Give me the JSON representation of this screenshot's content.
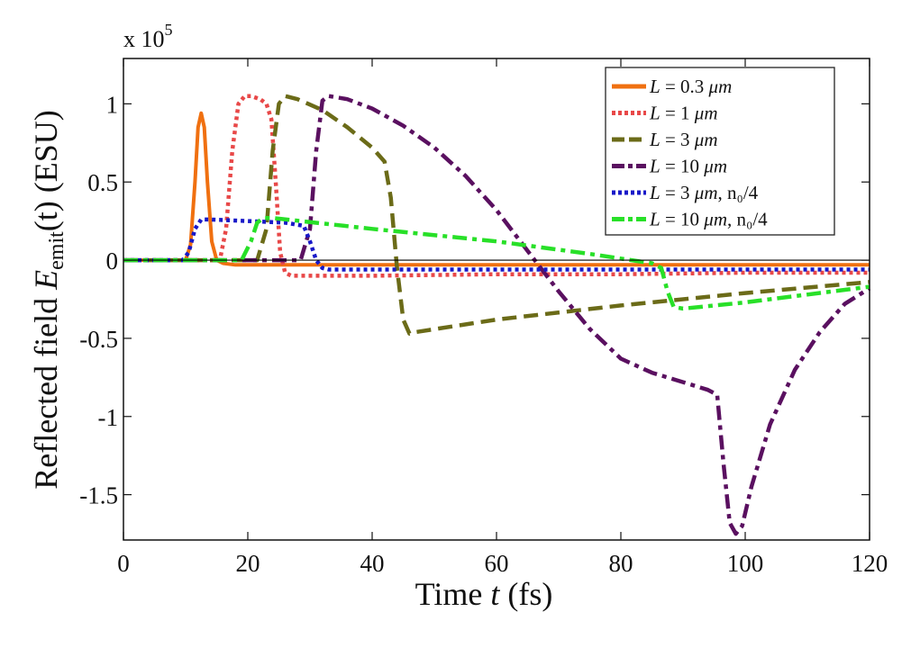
{
  "chart_data": {
    "type": "line",
    "title": "",
    "xlabel": "Time t (fs)",
    "xlabel_parts": {
      "main": "Time ",
      "var": "t",
      "unit": " (fs)"
    },
    "ylabel": "Reflected field E_emit(t) (ESU)",
    "ylabel_parts": {
      "main": "Reflected field ",
      "var": "E",
      "sub": "emit",
      "arg": "(t)",
      "unit": " (ESU)"
    },
    "y_multiplier": "x 10^5",
    "y_multiplier_parts": {
      "base": "x 10",
      "exp": "5"
    },
    "xlim": [
      0,
      120
    ],
    "ylim": [
      -1.79,
      1.29
    ],
    "x_ticks": [
      0,
      20,
      40,
      60,
      80,
      100,
      120
    ],
    "x_tick_labels": [
      "0",
      "20",
      "40",
      "60",
      "80",
      "100",
      "120"
    ],
    "y_ticks": [
      1,
      0.5,
      0,
      -0.5,
      -1,
      -1.5
    ],
    "y_tick_labels": [
      "1",
      "0.5",
      "0",
      "-0.5",
      "-1",
      "-1.5"
    ],
    "grid": false,
    "legend_position": "top-right",
    "zero_line": {
      "y": 0,
      "color": "#000000"
    },
    "series": [
      {
        "name": "L = 0.3 μm",
        "legend": {
          "pre": "L",
          "mid": " = 0.3 ",
          "unit": "μm",
          "suffix": ""
        },
        "color": "#f07010",
        "style": "solid",
        "x": [
          0,
          10,
          10.8,
          11.5,
          12,
          12.5,
          13,
          13.5,
          14.2,
          15,
          16,
          18,
          30,
          60,
          90,
          120
        ],
        "y": [
          0,
          0,
          0.1,
          0.5,
          0.85,
          0.94,
          0.85,
          0.5,
          0.12,
          0.0,
          -0.02,
          -0.03,
          -0.03,
          -0.03,
          -0.03,
          -0.03
        ]
      },
      {
        "name": "L = 1 μm",
        "legend": {
          "pre": "L",
          "mid": " = 1 ",
          "unit": "μm",
          "suffix": ""
        },
        "color": "#e84848",
        "style": "dotted",
        "x": [
          0,
          15.5,
          16.5,
          17.5,
          18.5,
          19.5,
          20.5,
          22,
          23,
          23.8,
          24.5,
          25.2,
          26,
          27,
          40,
          60,
          80,
          100,
          120
        ],
        "y": [
          0,
          0,
          0.2,
          0.7,
          1.0,
          1.05,
          1.05,
          1.03,
          1.0,
          0.9,
          0.5,
          0.05,
          -0.08,
          -0.1,
          -0.1,
          -0.09,
          -0.09,
          -0.08,
          -0.08
        ]
      },
      {
        "name": "L = 3 μm",
        "legend": {
          "pre": "L",
          "mid": " = 3 ",
          "unit": "μm",
          "suffix": ""
        },
        "color": "#6b6b18",
        "style": "dashed",
        "x": [
          0,
          21.5,
          23,
          24,
          25,
          26,
          28,
          32,
          36,
          40,
          42,
          43,
          44,
          45,
          46,
          47,
          60,
          80,
          100,
          120
        ],
        "y": [
          0,
          0,
          0.2,
          0.7,
          1.0,
          1.05,
          1.03,
          0.96,
          0.85,
          0.72,
          0.63,
          0.4,
          -0.05,
          -0.38,
          -0.47,
          -0.46,
          -0.38,
          -0.29,
          -0.21,
          -0.14
        ]
      },
      {
        "name": "L = 10 μm",
        "legend": {
          "pre": "L",
          "mid": " = 10 ",
          "unit": "μm",
          "suffix": ""
        },
        "color": "#5a1060",
        "style": "dashdot",
        "x": [
          0,
          28.5,
          30,
          31,
          32,
          33,
          36,
          40,
          45,
          50,
          55,
          60,
          65,
          70,
          75,
          80,
          85,
          90,
          94,
          95.5,
          96.5,
          97.5,
          98.5,
          99.5,
          101,
          104,
          108,
          112,
          116,
          120
        ],
        "y": [
          0,
          0,
          0.2,
          0.7,
          1.02,
          1.05,
          1.03,
          0.97,
          0.86,
          0.72,
          0.54,
          0.32,
          0.06,
          -0.2,
          -0.44,
          -0.63,
          -0.72,
          -0.78,
          -0.83,
          -0.86,
          -1.3,
          -1.68,
          -1.75,
          -1.7,
          -1.45,
          -1.05,
          -0.7,
          -0.46,
          -0.28,
          -0.18
        ]
      },
      {
        "name": "L = 3 μm, n0/4",
        "legend": {
          "pre": "L",
          "mid": " = 3 ",
          "unit": "μm",
          "suffix": ", n₀/4"
        },
        "color": "#1818c8",
        "style": "dotted",
        "x": [
          0,
          9.5,
          10.5,
          11.5,
          12.5,
          14,
          20,
          26,
          29,
          30,
          31,
          32,
          33,
          40,
          60,
          80,
          100,
          120
        ],
        "y": [
          0,
          0,
          0.05,
          0.2,
          0.26,
          0.26,
          0.25,
          0.24,
          0.22,
          0.12,
          0.0,
          -0.05,
          -0.06,
          -0.06,
          -0.06,
          -0.06,
          -0.06,
          -0.06
        ]
      },
      {
        "name": "L = 10 μm, n0/4",
        "legend": {
          "pre": "L",
          "mid": " = 10 ",
          "unit": "μm",
          "suffix": ", n₀/4"
        },
        "color": "#28e028",
        "style": "dashdot",
        "x": [
          0,
          19,
          20.5,
          21.5,
          22.5,
          24,
          40,
          60,
          75,
          80,
          85,
          86.5,
          87.5,
          88.5,
          90,
          100,
          110,
          120
        ],
        "y": [
          0,
          0,
          0.12,
          0.24,
          0.27,
          0.27,
          0.2,
          0.12,
          0.04,
          0.01,
          -0.02,
          -0.05,
          -0.2,
          -0.3,
          -0.31,
          -0.27,
          -0.22,
          -0.17
        ]
      }
    ]
  }
}
